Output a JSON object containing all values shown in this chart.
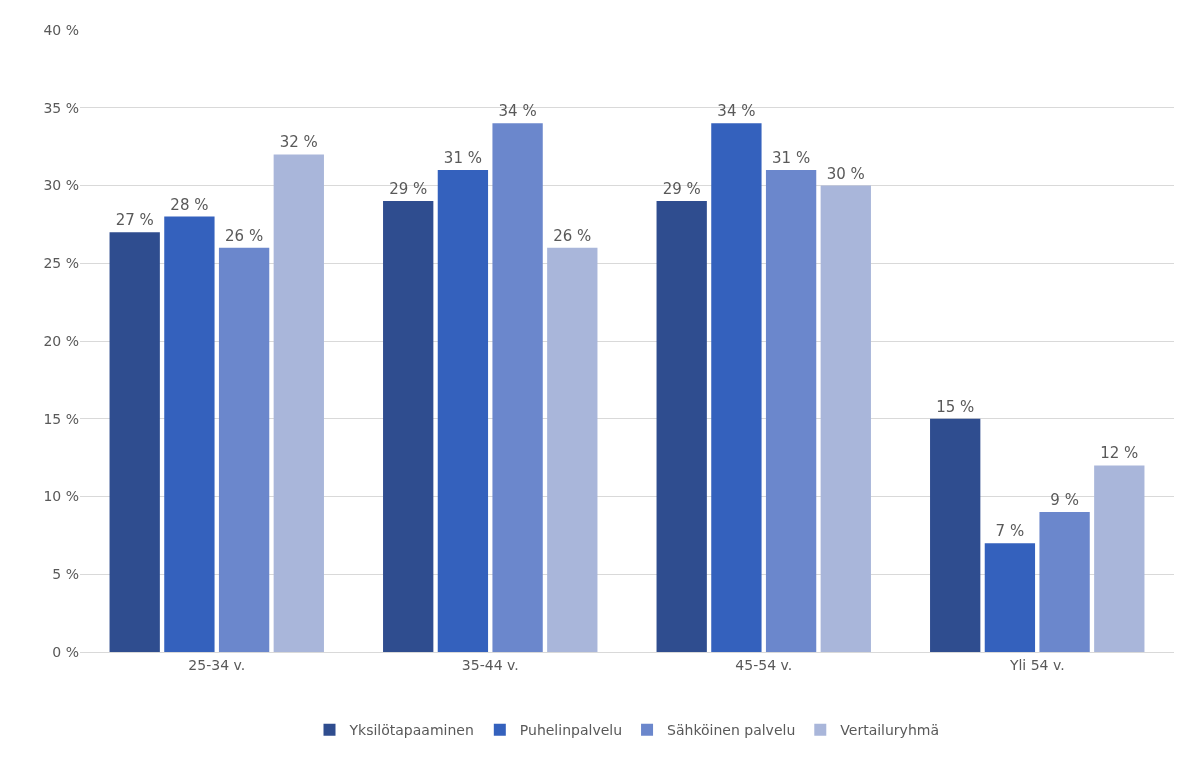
{
  "chart_data": {
    "type": "bar",
    "categories": [
      "25-34 v.",
      "35-44 v.",
      "45-54 v.",
      "Yli 54 v."
    ],
    "series": [
      {
        "name": "Yksilötapaaminen",
        "color": "#2f4d8f",
        "values": [
          27,
          29,
          29,
          15
        ],
        "value_labels": [
          "27 %",
          "29 %",
          "29 %",
          "15 %"
        ]
      },
      {
        "name": "Puhelinpalvelu",
        "color": "#3461bd",
        "values": [
          28,
          31,
          34,
          7
        ],
        "value_labels": [
          "28 %",
          "31 %",
          "34 %",
          "7 %"
        ]
      },
      {
        "name": "Sähköinen palvelu",
        "color": "#6b87cc",
        "values": [
          26,
          34,
          31,
          9
        ],
        "value_labels": [
          "26 %",
          "34 %",
          "31 %",
          "9 %"
        ]
      },
      {
        "name": "Vertailuryhmä",
        "color": "#a9b6da",
        "values": [
          32,
          26,
          30,
          12
        ],
        "value_labels": [
          "32 %",
          "26 %",
          "30 %",
          "12 %"
        ]
      }
    ],
    "ylim": [
      0,
      40
    ],
    "yticks": [
      {
        "value": 0,
        "label": "0 %"
      },
      {
        "value": 5,
        "label": "5 %"
      },
      {
        "value": 10,
        "label": "10 %"
      },
      {
        "value": 15,
        "label": "15 %"
      },
      {
        "value": 20,
        "label": "20 %"
      },
      {
        "value": 25,
        "label": "25 %"
      },
      {
        "value": 30,
        "label": "30 %"
      },
      {
        "value": 35,
        "label": "35 %"
      },
      {
        "value": 40,
        "label": "40 %"
      }
    ],
    "grid": "y",
    "legend": "bottom"
  }
}
